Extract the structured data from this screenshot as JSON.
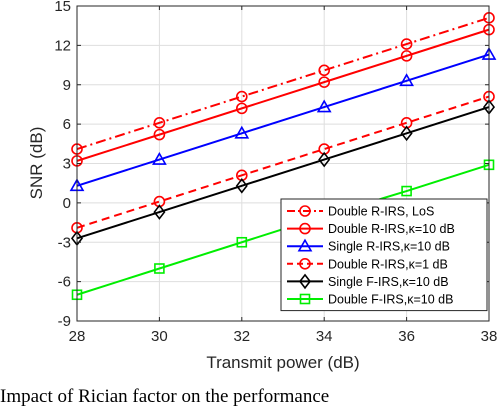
{
  "chart_data": {
    "type": "line",
    "xlabel": "Transmit power (dB)",
    "ylabel": "SNR (dB)",
    "xlim": [
      28,
      38
    ],
    "ylim": [
      -9,
      15
    ],
    "x": [
      28,
      30,
      32,
      34,
      36,
      38
    ],
    "x_tick_labels": [
      "28",
      "30",
      "32",
      "34",
      "36",
      "38"
    ],
    "y_tick_labels": [
      "-9",
      "-6",
      "-3",
      "0",
      "3",
      "6",
      "9",
      "12",
      "15"
    ],
    "grid": true,
    "legend_position": "lower-right",
    "series": [
      {
        "name": "Double R-IRS, LoS",
        "color": "#ff0000",
        "line": "dashdot",
        "marker": "circle",
        "values": [
          4.1,
          6.1,
          8.1,
          10.1,
          12.1,
          14.1
        ]
      },
      {
        "name": "Double R-IRS,κ=10 dB",
        "color": "#ff0000",
        "line": "solid",
        "marker": "circle",
        "values": [
          3.2,
          5.2,
          7.2,
          9.2,
          11.2,
          13.2
        ]
      },
      {
        "name": "Single R-IRS,κ=10 dB",
        "color": "#0000ff",
        "line": "solid",
        "marker": "triangle",
        "values": [
          1.3,
          3.3,
          5.3,
          7.3,
          9.3,
          11.3
        ]
      },
      {
        "name": "Double R-IRS,κ=1 dB",
        "color": "#ff0000",
        "line": "dashed",
        "marker": "circle",
        "values": [
          -1.9,
          0.1,
          2.1,
          4.1,
          6.1,
          8.1
        ]
      },
      {
        "name": "Single F-IRS,κ=10 dB",
        "color": "#000000",
        "line": "solid",
        "marker": "diamond",
        "values": [
          -2.7,
          -0.7,
          1.3,
          3.3,
          5.3,
          7.3
        ]
      },
      {
        "name": "Double F-IRS,κ=10 dB",
        "color": "#00ee00",
        "line": "solid",
        "marker": "square",
        "values": [
          -7.0,
          -5.0,
          -3.0,
          -1.0,
          0.9,
          2.9
        ]
      }
    ]
  },
  "caption": "Impact of Rician factor on the performance"
}
